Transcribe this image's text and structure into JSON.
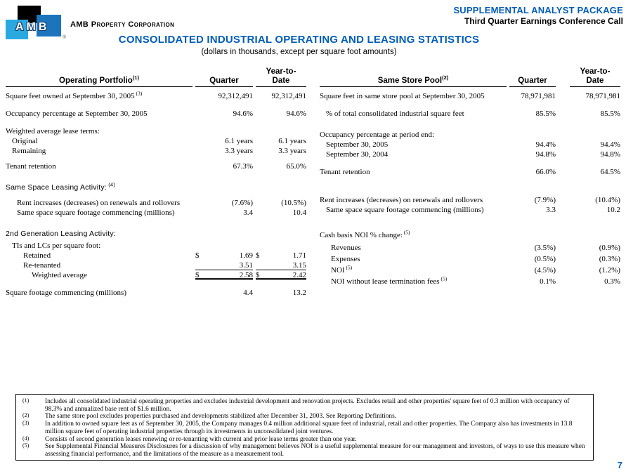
{
  "page": {
    "header": {
      "logo_text": "AMB",
      "logo_registered": "®",
      "company": "AMB Property Corporation",
      "package_line1": "SUPPLEMENTAL ANALYST PACKAGE",
      "package_line2": "Third Quarter Earnings Conference Call",
      "title": "CONSOLIDATED INDUSTRIAL OPERATING AND LEASING STATISTICS",
      "subtitle": "(dollars in thousands, except per square foot amounts)"
    },
    "page_number": "7"
  },
  "colors": {
    "heading_blue": "#005CB9",
    "logo_cyan": "#29A9E0",
    "logo_blue": "#1C75BC",
    "logo_black": "#000000"
  },
  "left_table": {
    "title": "Operating Portfolio",
    "title_sup": "(1)",
    "col_quarter": "Quarter",
    "col_ytd_line1": "Year-to-",
    "col_ytd_line2": "Date",
    "rows": [
      {
        "label": "Square feet owned at September 30, 2005",
        "sup": "(3)",
        "q": "92,312,491",
        "y": "92,312,491"
      },
      {
        "spacer": "md"
      },
      {
        "label": "Occupancy percentage at September 30, 2005",
        "q": "94.6%",
        "y": "94.6%"
      },
      {
        "spacer": "md"
      },
      {
        "label": "Weighted average lease terms:"
      },
      {
        "label": "Original",
        "indent": 1,
        "q": "6.1 years",
        "y": "6.1 years"
      },
      {
        "label": "Remaining",
        "indent": 1,
        "q": "3.3 years",
        "y": "3.3 years"
      },
      {
        "spacer": "sm"
      },
      {
        "label": "Tenant retention",
        "q": "67.3%",
        "y": "65.0%"
      },
      {
        "spacer": "lg"
      },
      {
        "label": "Same Space Leasing Activity:",
        "sup": "(4)",
        "sans": true
      },
      {
        "spacer": "sm"
      },
      {
        "label": "Rent increases (decreases) on renewals and rollovers",
        "indent": 2,
        "q": "(7.6%)",
        "y": "(10.5%)"
      },
      {
        "label": "Same space square footage commencing (millions)",
        "indent": 2,
        "q": "3.4",
        "y": "10.4"
      },
      {
        "spacer": "lg"
      },
      {
        "label": "2nd Generation Leasing Activity:",
        "sans": true
      },
      {
        "spacer": "xs"
      },
      {
        "label": "TIs and LCs per square foot:",
        "indent": 1
      },
      {
        "label": "Retained",
        "indent": 3,
        "q": "1.69",
        "y": "1.71",
        "dollar": "$"
      },
      {
        "label": "Re-tenanted",
        "indent": 3,
        "q": "3.51",
        "y": "3.15",
        "rule": "single"
      },
      {
        "label": "Weighted average",
        "indent": 4,
        "q": "2.58",
        "y": "2.42",
        "dollar": "$",
        "rule": "double"
      },
      {
        "spacer": "md"
      },
      {
        "label": "Square footage commencing (millions)",
        "q": "4.4",
        "y": "13.2"
      }
    ]
  },
  "right_table": {
    "title": "Same Store Pool",
    "title_sup": "(2)",
    "col_quarter": "Quarter",
    "col_ytd_line1": "Year-to-",
    "col_ytd_line2": "Date",
    "rows": [
      {
        "label": "Square feet in same store pool at September 30, 2005",
        "q": "78,971,981",
        "y": "78,971,981"
      },
      {
        "spacer": "md"
      },
      {
        "label": "% of total consolidated industrial square feet",
        "indent": 1,
        "q": "85.5%",
        "y": "85.5%"
      },
      {
        "spacer": "lg"
      },
      {
        "label": "Occupancy percentage at period end:"
      },
      {
        "label": "September 30, 2005",
        "indent": 1,
        "q": "94.4%",
        "y": "94.4%"
      },
      {
        "label": "September 30, 2004",
        "indent": 1,
        "q": "94.8%",
        "y": "94.8%"
      },
      {
        "spacer": "md"
      },
      {
        "label": "Tenant retention",
        "q": "66.0%",
        "y": "64.5%"
      },
      {
        "spacer": "xxl"
      },
      {
        "label": "Rent increases (decreases) on renewals and rollovers",
        "q": "(7.9%)",
        "y": "(10.4%)"
      },
      {
        "label": "Same space square footage commencing (millions)",
        "indent": 1,
        "q": "3.3",
        "y": "10.2"
      },
      {
        "spacer": "xl"
      },
      {
        "label": "Cash basis NOI % change:",
        "sup": "(5)"
      },
      {
        "spacer": "xs"
      },
      {
        "label": "Revenues",
        "indent": 2,
        "q": "(3.5%)",
        "y": "(0.9%)",
        "tall": true
      },
      {
        "label": "Expenses",
        "indent": 2,
        "q": "(0.5%)",
        "y": "(0.3%)",
        "tall": true
      },
      {
        "label": "NOI",
        "sup": "(5)",
        "indent": 2,
        "q": "(4.5%)",
        "y": "(1.2%)",
        "tall": true
      },
      {
        "label": "NOI without lease termination fees",
        "sup": "(5)",
        "indent": 2,
        "q": "0.1%",
        "y": "0.3%",
        "tall": true
      }
    ]
  },
  "footnotes": [
    {
      "marker": "(1)",
      "text": "Includes all consolidated industrial operating properties and excludes industrial development and renovation projects. Excludes retail and other properties' square feet of 0.3 million with occupancy of 98.3% and annualized base rent of $1.6 million."
    },
    {
      "marker": "(2)",
      "text": "The same store pool excludes properties purchased and developments stabilized after December 31, 2003. See Reporting Definitions."
    },
    {
      "marker": "(3)",
      "text": "In addition to owned square feet as of September 30, 2005, the Company manages 0.4 million additional square feet of industrial, retail and other properties. The Company also has investments in 13.8 million square feet of operating industrial properties through its investments in unconsolidated joint ventures."
    },
    {
      "marker": "(4)",
      "text": "Consists of second generation leases renewing or re-tenanting with current and prior lease terms greater than one year."
    },
    {
      "marker": "(5)",
      "text": "See Supplemental Financial Measures Disclosures for a discussion of why management believes NOI is a useful supplemental measure for our management and investors, of ways to use this measure when assessing financial performance, and the limitations of the measure as a measurement tool."
    }
  ]
}
